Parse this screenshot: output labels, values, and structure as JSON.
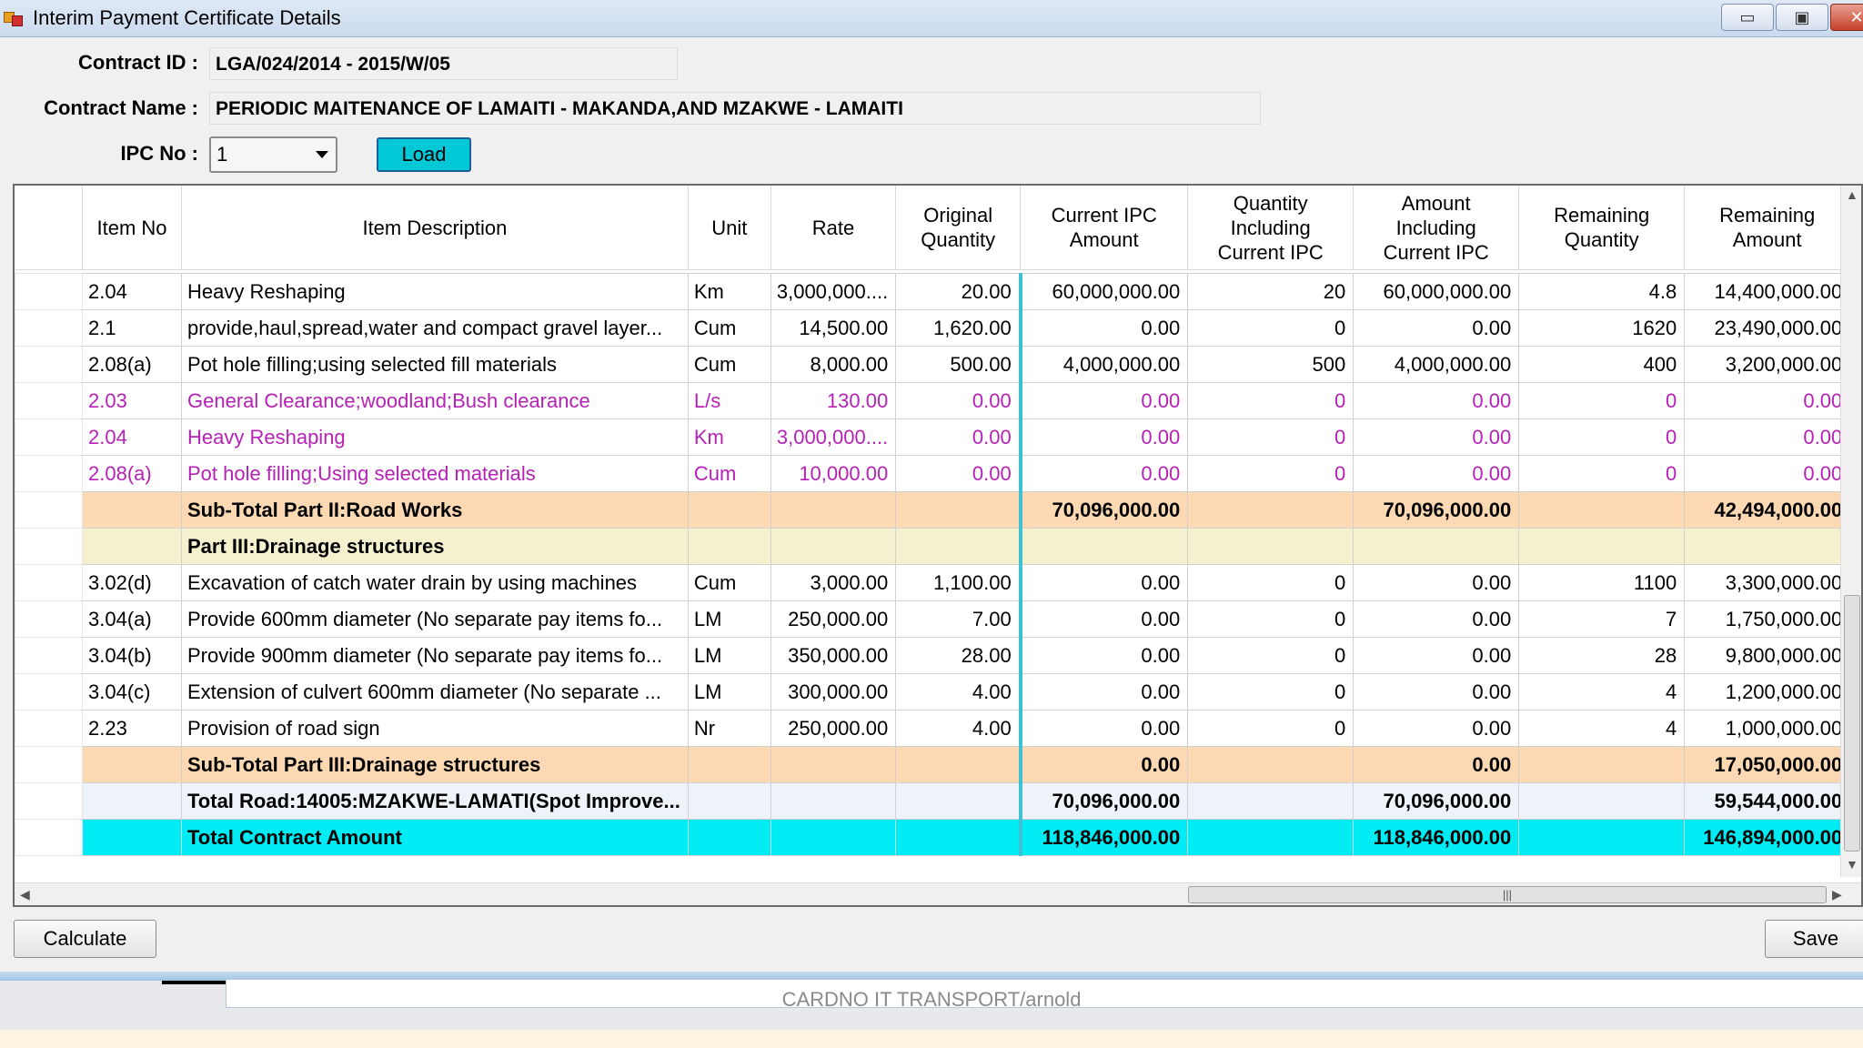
{
  "window": {
    "title": "Interim Payment Certificate Details",
    "minimize_glyph": "▭",
    "maximize_glyph": "▣",
    "close_glyph": "✕"
  },
  "form": {
    "contract_id_label": "Contract ID :",
    "contract_id_value": "LGA/024/2014 - 2015/W/05",
    "contract_name_label": "Contract Name :",
    "contract_name_value": "PERIODIC MAITENANCE OF LAMAITI - MAKANDA,AND MZAKWE - LAMAITI",
    "ipc_no_label": "IPC No :",
    "ipc_no_value": "1",
    "load_label": "Load"
  },
  "grid": {
    "columns": [
      "Item No",
      "Item Description",
      "Unit",
      "Rate",
      "Original Quantity",
      "Current IPC Amount",
      "Quantity Including Current IPC",
      "Amount Including Current IPC",
      "Remaining Quantity",
      "Remaining Amount"
    ],
    "rows": [
      {
        "style": "normal",
        "cells": [
          "2.04",
          "Heavy Reshaping",
          "Km",
          "3,000,000....",
          "20.00",
          "60,000,000.00",
          "20",
          "60,000,000.00",
          "4.8",
          "14,400,000.00"
        ]
      },
      {
        "style": "normal",
        "cells": [
          "2.1",
          "provide,haul,spread,water and compact gravel layer...",
          "Cum",
          "14,500.00",
          "1,620.00",
          "0.00",
          "0",
          "0.00",
          "1620",
          "23,490,000.00"
        ]
      },
      {
        "style": "normal",
        "cells": [
          "2.08(a)",
          "Pot hole filling;using selected fill materials",
          "Cum",
          "8,000.00",
          "500.00",
          "4,000,000.00",
          "500",
          "4,000,000.00",
          "400",
          "3,200,000.00"
        ]
      },
      {
        "style": "pink",
        "cells": [
          "2.03",
          "General Clearance;woodland;Bush clearance",
          "L/s",
          "130.00",
          "0.00",
          "0.00",
          "0",
          "0.00",
          "0",
          "0.00"
        ]
      },
      {
        "style": "pink",
        "cells": [
          "2.04",
          "Heavy Reshaping",
          "Km",
          "3,000,000....",
          "0.00",
          "0.00",
          "0",
          "0.00",
          "0",
          "0.00"
        ]
      },
      {
        "style": "pink",
        "cells": [
          "2.08(a)",
          "Pot hole filling;Using selected materials",
          "Cum",
          "10,000.00",
          "0.00",
          "0.00",
          "0",
          "0.00",
          "0",
          "0.00"
        ]
      },
      {
        "style": "sub",
        "cells": [
          "",
          "Sub-Total Part II:Road Works",
          "",
          "",
          "",
          "70,096,000.00",
          "",
          "70,096,000.00",
          "",
          "42,494,000.00"
        ]
      },
      {
        "style": "part",
        "cells": [
          "",
          "Part III:Drainage structures",
          "",
          "",
          "",
          "",
          "",
          "",
          "",
          ""
        ]
      },
      {
        "style": "normal",
        "cells": [
          "3.02(d)",
          "Excavation of catch water drain by using machines",
          "Cum",
          "3,000.00",
          "1,100.00",
          "0.00",
          "0",
          "0.00",
          "1100",
          "3,300,000.00"
        ]
      },
      {
        "style": "normal",
        "cells": [
          "3.04(a)",
          "Provide 600mm diameter (No separate pay items fo...",
          "LM",
          "250,000.00",
          "7.00",
          "0.00",
          "0",
          "0.00",
          "7",
          "1,750,000.00"
        ]
      },
      {
        "style": "normal",
        "cells": [
          "3.04(b)",
          "Provide 900mm diameter (No separate pay items fo...",
          "LM",
          "350,000.00",
          "28.00",
          "0.00",
          "0",
          "0.00",
          "28",
          "9,800,000.00"
        ]
      },
      {
        "style": "normal",
        "cells": [
          "3.04(c)",
          "Extension of culvert 600mm diameter (No separate ...",
          "LM",
          "300,000.00",
          "4.00",
          "0.00",
          "0",
          "0.00",
          "4",
          "1,200,000.00"
        ]
      },
      {
        "style": "normal",
        "cells": [
          "2.23",
          "Provision of road sign",
          "Nr",
          "250,000.00",
          "4.00",
          "0.00",
          "0",
          "0.00",
          "4",
          "1,000,000.00"
        ]
      },
      {
        "style": "sub",
        "cells": [
          "",
          "Sub-Total Part III:Drainage structures",
          "",
          "",
          "",
          "0.00",
          "",
          "0.00",
          "",
          "17,050,000.00"
        ]
      },
      {
        "style": "road",
        "cells": [
          "",
          "Total Road:14005:MZAKWE-LAMATI(Spot Improve...",
          "",
          "",
          "",
          "70,096,000.00",
          "",
          "70,096,000.00",
          "",
          "59,544,000.00"
        ]
      },
      {
        "style": "tot",
        "cells": [
          "",
          "Total Contract Amount",
          "",
          "",
          "",
          "118,846,000.00",
          "",
          "118,846,000.00",
          "",
          "146,894,000.00"
        ]
      }
    ]
  },
  "buttons": {
    "calculate": "Calculate",
    "save": "Save"
  },
  "status": {
    "text": "CARDNO IT TRANSPORT/arnold"
  },
  "colors": {
    "subtotal_row": "#fcd9b2",
    "part_row": "#f5f1cf",
    "total_row": "#00ecf5",
    "pink_text": "#b522b5",
    "load_button": "#00c8d6"
  }
}
